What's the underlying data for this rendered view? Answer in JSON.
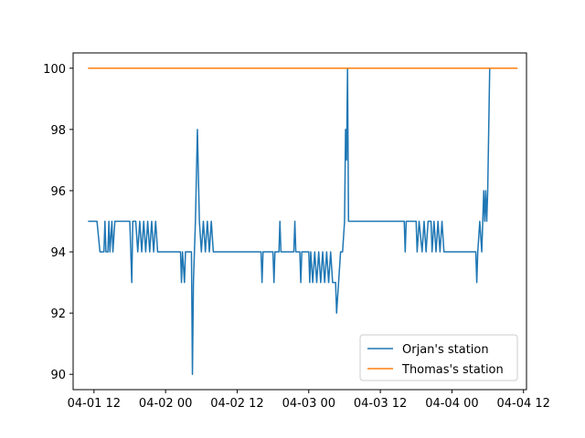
{
  "chart_data": {
    "type": "line",
    "x_type": "datetime",
    "xlim": [
      "2019-04-01T08:30",
      "2019-04-04T12:30"
    ],
    "ylim": [
      89.5,
      100.5
    ],
    "x_ticks": [
      {
        "value": "2019-04-01T12:00",
        "label": "04-01 12"
      },
      {
        "value": "2019-04-02T00:00",
        "label": "04-02 00"
      },
      {
        "value": "2019-04-02T12:00",
        "label": "04-02 12"
      },
      {
        "value": "2019-04-03T00:00",
        "label": "04-03 00"
      },
      {
        "value": "2019-04-03T12:00",
        "label": "04-03 12"
      },
      {
        "value": "2019-04-04T00:00",
        "label": "04-04 00"
      },
      {
        "value": "2019-04-04T12:00",
        "label": "04-04 12"
      }
    ],
    "y_ticks": [
      {
        "value": 90,
        "label": "90"
      },
      {
        "value": 92,
        "label": "92"
      },
      {
        "value": 94,
        "label": "94"
      },
      {
        "value": 96,
        "label": "96"
      },
      {
        "value": 98,
        "label": "98"
      },
      {
        "value": 100,
        "label": "100"
      }
    ],
    "grid": false,
    "legend_position": "lower-right",
    "series": [
      {
        "name": "Orjan's station",
        "color": "#1f77b4",
        "points": [
          [
            "2019-04-01T11:00",
            95
          ],
          [
            "2019-04-01T12:30",
            95
          ],
          [
            "2019-04-01T13:00",
            94
          ],
          [
            "2019-04-01T13:40",
            94
          ],
          [
            "2019-04-01T13:50",
            95
          ],
          [
            "2019-04-01T14:00",
            94
          ],
          [
            "2019-04-01T14:20",
            94
          ],
          [
            "2019-04-01T14:30",
            95
          ],
          [
            "2019-04-01T14:40",
            94
          ],
          [
            "2019-04-01T15:00",
            95
          ],
          [
            "2019-04-01T15:10",
            94
          ],
          [
            "2019-04-01T15:30",
            95
          ],
          [
            "2019-04-01T18:00",
            95
          ],
          [
            "2019-04-01T18:20",
            93
          ],
          [
            "2019-04-01T18:30",
            95
          ],
          [
            "2019-04-01T19:00",
            95
          ],
          [
            "2019-04-01T19:20",
            94
          ],
          [
            "2019-04-01T19:40",
            95
          ],
          [
            "2019-04-01T20:00",
            94
          ],
          [
            "2019-04-01T20:20",
            95
          ],
          [
            "2019-04-01T20:40",
            94
          ],
          [
            "2019-04-01T21:00",
            95
          ],
          [
            "2019-04-01T21:20",
            94
          ],
          [
            "2019-04-01T21:40",
            95
          ],
          [
            "2019-04-01T22:00",
            94
          ],
          [
            "2019-04-01T22:20",
            95
          ],
          [
            "2019-04-01T22:40",
            94
          ],
          [
            "2019-04-02T02:30",
            94
          ],
          [
            "2019-04-02T02:40",
            93
          ],
          [
            "2019-04-02T02:50",
            94
          ],
          [
            "2019-04-02T03:10",
            93
          ],
          [
            "2019-04-02T03:20",
            94
          ],
          [
            "2019-04-02T04:20",
            94
          ],
          [
            "2019-04-02T04:30",
            90
          ],
          [
            "2019-04-02T04:40",
            93
          ],
          [
            "2019-04-02T05:00",
            95
          ],
          [
            "2019-04-02T05:20",
            98
          ],
          [
            "2019-04-02T05:40",
            95
          ],
          [
            "2019-04-02T06:00",
            94
          ],
          [
            "2019-04-02T06:20",
            95
          ],
          [
            "2019-04-02T06:40",
            94
          ],
          [
            "2019-04-02T07:00",
            95
          ],
          [
            "2019-04-02T07:20",
            94
          ],
          [
            "2019-04-02T07:40",
            95
          ],
          [
            "2019-04-02T08:00",
            94
          ],
          [
            "2019-04-02T16:00",
            94
          ],
          [
            "2019-04-02T16:10",
            93
          ],
          [
            "2019-04-02T16:20",
            94
          ],
          [
            "2019-04-02T18:00",
            94
          ],
          [
            "2019-04-02T18:10",
            93
          ],
          [
            "2019-04-02T18:20",
            94
          ],
          [
            "2019-04-02T19:00",
            94
          ],
          [
            "2019-04-02T19:10",
            95
          ],
          [
            "2019-04-02T19:20",
            94
          ],
          [
            "2019-04-02T21:30",
            94
          ],
          [
            "2019-04-02T21:40",
            95
          ],
          [
            "2019-04-02T21:50",
            94
          ],
          [
            "2019-04-02T22:30",
            94
          ],
          [
            "2019-04-02T22:40",
            93
          ],
          [
            "2019-04-02T22:50",
            94
          ],
          [
            "2019-04-03T00:00",
            94
          ],
          [
            "2019-04-03T00:10",
            93
          ],
          [
            "2019-04-03T00:20",
            94
          ],
          [
            "2019-04-03T00:40",
            93
          ],
          [
            "2019-04-03T01:00",
            94
          ],
          [
            "2019-04-03T01:20",
            93
          ],
          [
            "2019-04-03T01:40",
            94
          ],
          [
            "2019-04-03T02:00",
            93
          ],
          [
            "2019-04-03T02:20",
            94
          ],
          [
            "2019-04-03T02:40",
            93
          ],
          [
            "2019-04-03T03:00",
            94
          ],
          [
            "2019-04-03T03:20",
            93
          ],
          [
            "2019-04-03T03:40",
            94
          ],
          [
            "2019-04-03T04:00",
            93
          ],
          [
            "2019-04-03T04:30",
            93
          ],
          [
            "2019-04-03T04:40",
            92
          ],
          [
            "2019-04-03T05:00",
            93
          ],
          [
            "2019-04-03T05:20",
            94
          ],
          [
            "2019-04-03T05:40",
            94
          ],
          [
            "2019-04-03T06:00",
            95
          ],
          [
            "2019-04-03T06:10",
            98
          ],
          [
            "2019-04-03T06:20",
            97
          ],
          [
            "2019-04-03T06:30",
            100
          ],
          [
            "2019-04-03T06:40",
            95
          ],
          [
            "2019-04-03T16:00",
            95
          ],
          [
            "2019-04-03T16:10",
            94
          ],
          [
            "2019-04-03T16:20",
            95
          ],
          [
            "2019-04-03T18:00",
            95
          ],
          [
            "2019-04-03T18:10",
            94
          ],
          [
            "2019-04-03T18:30",
            95
          ],
          [
            "2019-04-03T19:00",
            94
          ],
          [
            "2019-04-03T19:20",
            95
          ],
          [
            "2019-04-03T19:40",
            94
          ],
          [
            "2019-04-03T20:00",
            95
          ],
          [
            "2019-04-03T20:30",
            95
          ],
          [
            "2019-04-03T20:40",
            94
          ],
          [
            "2019-04-03T21:00",
            95
          ],
          [
            "2019-04-03T21:20",
            94
          ],
          [
            "2019-04-03T21:40",
            95
          ],
          [
            "2019-04-03T22:00",
            94
          ],
          [
            "2019-04-03T22:20",
            95
          ],
          [
            "2019-04-03T22:40",
            94
          ],
          [
            "2019-04-04T00:00",
            94
          ],
          [
            "2019-04-04T04:00",
            94
          ],
          [
            "2019-04-04T04:10",
            93
          ],
          [
            "2019-04-04T04:20",
            94
          ],
          [
            "2019-04-04T04:40",
            95
          ],
          [
            "2019-04-04T05:00",
            94
          ],
          [
            "2019-04-04T05:10",
            95
          ],
          [
            "2019-04-04T05:20",
            96
          ],
          [
            "2019-04-04T05:30",
            95
          ],
          [
            "2019-04-04T05:40",
            96
          ],
          [
            "2019-04-04T05:50",
            95
          ],
          [
            "2019-04-04T06:00",
            96
          ],
          [
            "2019-04-04T06:20",
            100
          ],
          [
            "2019-04-04T10:30",
            100
          ]
        ]
      },
      {
        "name": "Thomas's station",
        "color": "#ff7f0e",
        "points": [
          [
            "2019-04-01T11:00",
            100
          ],
          [
            "2019-04-04T11:00",
            100
          ]
        ]
      }
    ]
  }
}
